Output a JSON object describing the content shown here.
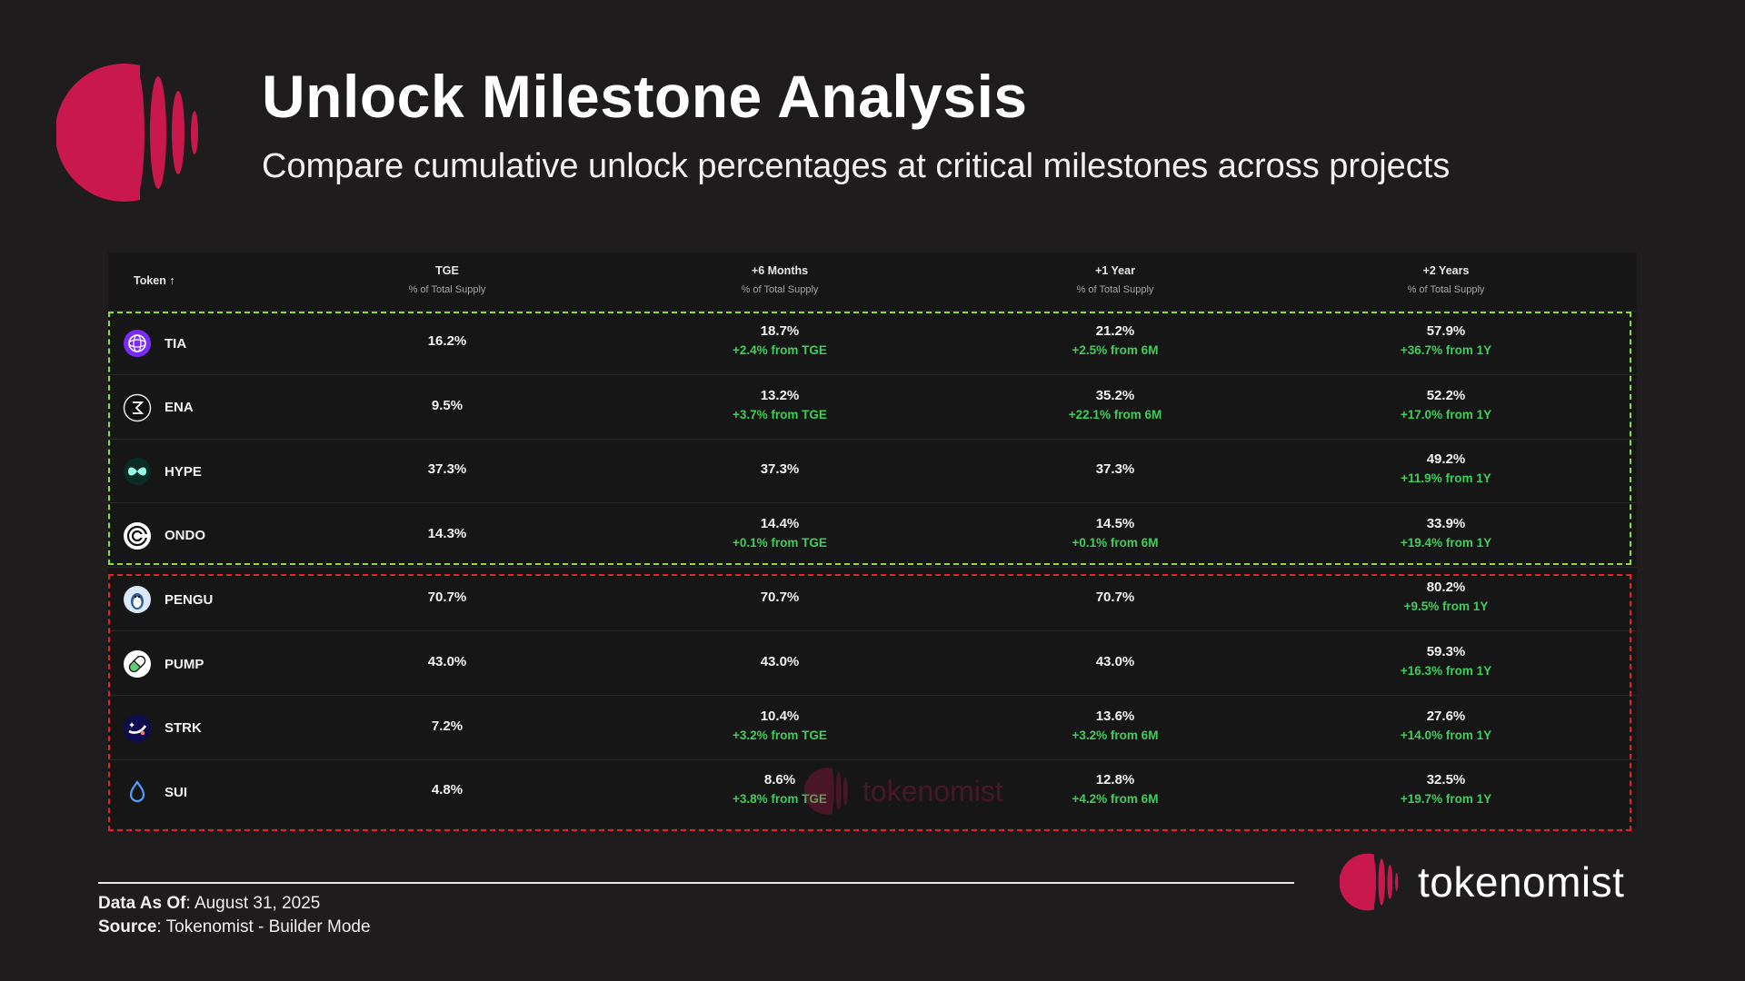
{
  "header": {
    "title": "Unlock Milestone Analysis",
    "subtitle": "Compare cumulative unlock percentages at critical milestones across projects"
  },
  "table": {
    "columns": {
      "token": "Token ↑",
      "tge": {
        "label": "TGE",
        "sub": "% of Total Supply"
      },
      "m6": {
        "label": "+6 Months",
        "sub": "% of Total Supply"
      },
      "y1": {
        "label": "+1 Year",
        "sub": "% of Total Supply"
      },
      "y2": {
        "label": "+2 Years",
        "sub": "% of Total Supply"
      }
    },
    "rows": [
      {
        "token": "TIA",
        "icon": "celestia-icon",
        "tge": "16.2%",
        "m6": "18.7%",
        "m6_delta": "+2.4% from TGE",
        "y1": "21.2%",
        "y1_delta": "+2.5% from 6M",
        "y2": "57.9%",
        "y2_delta": "+36.7% from 1Y"
      },
      {
        "token": "ENA",
        "icon": "ethena-icon",
        "tge": "9.5%",
        "m6": "13.2%",
        "m6_delta": "+3.7% from TGE",
        "y1": "35.2%",
        "y1_delta": "+22.1% from 6M",
        "y2": "52.2%",
        "y2_delta": "+17.0% from 1Y"
      },
      {
        "token": "HYPE",
        "icon": "hyperliquid-icon",
        "tge": "37.3%",
        "m6": "37.3%",
        "m6_delta": "",
        "y1": "37.3%",
        "y1_delta": "",
        "y2": "49.2%",
        "y2_delta": "+11.9% from 1Y"
      },
      {
        "token": "ONDO",
        "icon": "ondo-icon",
        "tge": "14.3%",
        "m6": "14.4%",
        "m6_delta": "+0.1% from TGE",
        "y1": "14.5%",
        "y1_delta": "+0.1% from 6M",
        "y2": "33.9%",
        "y2_delta": "+19.4% from 1Y"
      },
      {
        "token": "PENGU",
        "icon": "pengu-icon",
        "tge": "70.7%",
        "m6": "70.7%",
        "m6_delta": "",
        "y1": "70.7%",
        "y1_delta": "",
        "y2": "80.2%",
        "y2_delta": "+9.5% from 1Y"
      },
      {
        "token": "PUMP",
        "icon": "pump-pill-icon",
        "tge": "43.0%",
        "m6": "43.0%",
        "m6_delta": "",
        "y1": "43.0%",
        "y1_delta": "",
        "y2": "59.3%",
        "y2_delta": "+16.3% from 1Y"
      },
      {
        "token": "STRK",
        "icon": "starknet-icon",
        "tge": "7.2%",
        "m6": "10.4%",
        "m6_delta": "+3.2% from TGE",
        "y1": "13.6%",
        "y1_delta": "+3.2% from 6M",
        "y2": "27.6%",
        "y2_delta": "+14.0% from 1Y"
      },
      {
        "token": "SUI",
        "icon": "sui-drop-icon",
        "tge": "4.8%",
        "m6": "8.6%",
        "m6_delta": "+3.8% from TGE",
        "y1": "12.8%",
        "y1_delta": "+4.2% from 6M",
        "y2": "32.5%",
        "y2_delta": "+19.7% from 1Y"
      }
    ],
    "watermark": "tokenomist"
  },
  "footer": {
    "data_as_of_label": "Data As Of",
    "data_as_of": ": August 31, 2025",
    "source_label": "Source",
    "source": ": Tokenomist - Builder Mode",
    "brand": "tokenomist"
  },
  "colors": {
    "background": "#1e1c1d",
    "brand": "#c8184d",
    "positive": "#3ecf5a",
    "highlight_green": "#8fe01e",
    "highlight_red": "#e8202a"
  }
}
